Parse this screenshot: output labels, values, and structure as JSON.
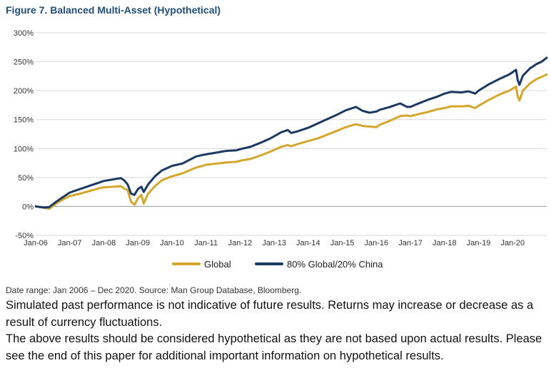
{
  "chart_data": {
    "type": "line",
    "title": "Figure 7. Balanced Multi-Asset (Hypothetical)",
    "xlabel": "",
    "ylabel": "",
    "ylim": [
      -50,
      300
    ],
    "yticks": [
      "300%",
      "250%",
      "200%",
      "150%",
      "100%",
      "50%",
      "0%",
      "-50%"
    ],
    "ytick_values": [
      300,
      250,
      200,
      150,
      100,
      50,
      0,
      -50
    ],
    "x_ticks": [
      "Jan-06",
      "Jan-07",
      "Jan-08",
      "Jan-09",
      "Jan-10",
      "Jan-11",
      "Jan-12",
      "Jan-13",
      "Jan-14",
      "Jan-15",
      "Jan-16",
      "Jan-17",
      "Jan-18",
      "Jan-19",
      "Jan-20"
    ],
    "x_range": [
      2006.0,
      2021.0
    ],
    "grid": true,
    "legend_position": "bottom",
    "series": [
      {
        "name": "Global",
        "color": "#d4a72c",
        "points": [
          [
            2006.0,
            0
          ],
          [
            2006.25,
            -2
          ],
          [
            2006.4,
            -4
          ],
          [
            2006.6,
            5
          ],
          [
            2006.8,
            12
          ],
          [
            2007.0,
            18
          ],
          [
            2007.3,
            22
          ],
          [
            2007.6,
            27
          ],
          [
            2007.9,
            32
          ],
          [
            2008.0,
            33
          ],
          [
            2008.3,
            34
          ],
          [
            2008.5,
            35
          ],
          [
            2008.6,
            31
          ],
          [
            2008.7,
            28
          ],
          [
            2008.8,
            8
          ],
          [
            2008.9,
            3
          ],
          [
            2009.0,
            14
          ],
          [
            2009.1,
            20
          ],
          [
            2009.17,
            5
          ],
          [
            2009.3,
            22
          ],
          [
            2009.5,
            35
          ],
          [
            2009.7,
            45
          ],
          [
            2010.0,
            52
          ],
          [
            2010.3,
            57
          ],
          [
            2010.5,
            62
          ],
          [
            2010.7,
            67
          ],
          [
            2010.9,
            70
          ],
          [
            2011.0,
            72
          ],
          [
            2011.3,
            74
          ],
          [
            2011.6,
            76
          ],
          [
            2011.9,
            77
          ],
          [
            2012.0,
            79
          ],
          [
            2012.3,
            82
          ],
          [
            2012.6,
            88
          ],
          [
            2012.9,
            95
          ],
          [
            2013.2,
            103
          ],
          [
            2013.4,
            106
          ],
          [
            2013.5,
            104
          ],
          [
            2013.7,
            108
          ],
          [
            2014.0,
            113
          ],
          [
            2014.3,
            118
          ],
          [
            2014.6,
            125
          ],
          [
            2014.9,
            132
          ],
          [
            2015.1,
            137
          ],
          [
            2015.4,
            142
          ],
          [
            2015.6,
            139
          ],
          [
            2015.8,
            138
          ],
          [
            2016.0,
            137
          ],
          [
            2016.1,
            141
          ],
          [
            2016.4,
            148
          ],
          [
            2016.7,
            156
          ],
          [
            2016.9,
            157
          ],
          [
            2017.0,
            156
          ],
          [
            2017.2,
            159
          ],
          [
            2017.5,
            163
          ],
          [
            2017.8,
            168
          ],
          [
            2018.0,
            170
          ],
          [
            2018.2,
            173
          ],
          [
            2018.5,
            173
          ],
          [
            2018.7,
            174
          ],
          [
            2018.9,
            170
          ],
          [
            2019.0,
            174
          ],
          [
            2019.3,
            184
          ],
          [
            2019.6,
            193
          ],
          [
            2019.9,
            200
          ],
          [
            2020.1,
            207
          ],
          [
            2020.15,
            190
          ],
          [
            2020.2,
            183
          ],
          [
            2020.3,
            200
          ],
          [
            2020.5,
            212
          ],
          [
            2020.7,
            220
          ],
          [
            2020.85,
            224
          ],
          [
            2021.0,
            228
          ]
        ]
      },
      {
        "name": "80% Global/20% China",
        "color": "#1b3a63",
        "points": [
          [
            2006.0,
            0
          ],
          [
            2006.25,
            -2
          ],
          [
            2006.4,
            -1
          ],
          [
            2006.6,
            8
          ],
          [
            2006.8,
            16
          ],
          [
            2007.0,
            24
          ],
          [
            2007.3,
            30
          ],
          [
            2007.6,
            36
          ],
          [
            2007.9,
            42
          ],
          [
            2008.0,
            44
          ],
          [
            2008.3,
            47
          ],
          [
            2008.5,
            49
          ],
          [
            2008.6,
            45
          ],
          [
            2008.7,
            38
          ],
          [
            2008.8,
            22
          ],
          [
            2008.9,
            20
          ],
          [
            2009.0,
            30
          ],
          [
            2009.1,
            34
          ],
          [
            2009.17,
            25
          ],
          [
            2009.3,
            38
          ],
          [
            2009.5,
            52
          ],
          [
            2009.7,
            62
          ],
          [
            2010.0,
            70
          ],
          [
            2010.3,
            74
          ],
          [
            2010.5,
            80
          ],
          [
            2010.7,
            86
          ],
          [
            2010.9,
            89
          ],
          [
            2011.0,
            90
          ],
          [
            2011.3,
            93
          ],
          [
            2011.6,
            96
          ],
          [
            2011.9,
            97
          ],
          [
            2012.0,
            99
          ],
          [
            2012.3,
            103
          ],
          [
            2012.6,
            110
          ],
          [
            2012.9,
            118
          ],
          [
            2013.2,
            128
          ],
          [
            2013.4,
            132
          ],
          [
            2013.5,
            127
          ],
          [
            2013.7,
            130
          ],
          [
            2014.0,
            136
          ],
          [
            2014.3,
            144
          ],
          [
            2014.6,
            152
          ],
          [
            2014.9,
            160
          ],
          [
            2015.1,
            166
          ],
          [
            2015.4,
            172
          ],
          [
            2015.6,
            165
          ],
          [
            2015.8,
            162
          ],
          [
            2016.0,
            164
          ],
          [
            2016.1,
            167
          ],
          [
            2016.4,
            172
          ],
          [
            2016.7,
            178
          ],
          [
            2016.9,
            172
          ],
          [
            2017.0,
            172
          ],
          [
            2017.2,
            177
          ],
          [
            2017.5,
            184
          ],
          [
            2017.8,
            190
          ],
          [
            2018.0,
            195
          ],
          [
            2018.2,
            198
          ],
          [
            2018.5,
            197
          ],
          [
            2018.7,
            199
          ],
          [
            2018.9,
            195
          ],
          [
            2019.0,
            200
          ],
          [
            2019.3,
            211
          ],
          [
            2019.6,
            220
          ],
          [
            2019.9,
            228
          ],
          [
            2020.1,
            236
          ],
          [
            2020.15,
            218
          ],
          [
            2020.2,
            210
          ],
          [
            2020.3,
            226
          ],
          [
            2020.5,
            238
          ],
          [
            2020.7,
            246
          ],
          [
            2020.85,
            250
          ],
          [
            2021.0,
            257
          ]
        ]
      }
    ]
  },
  "source_note": "Date range: Jan 2006 – Dec 2020. Source: Man Group Database, Bloomberg.",
  "disclaimer": {
    "line1": "Simulated past performance is not indicative of future results. Returns may increase or decrease as a result of currency fluctuations.",
    "line2": "The above results should be considered hypothetical as they are not based upon actual results. Please see the end of this paper for additional important information on hypothetical results."
  }
}
